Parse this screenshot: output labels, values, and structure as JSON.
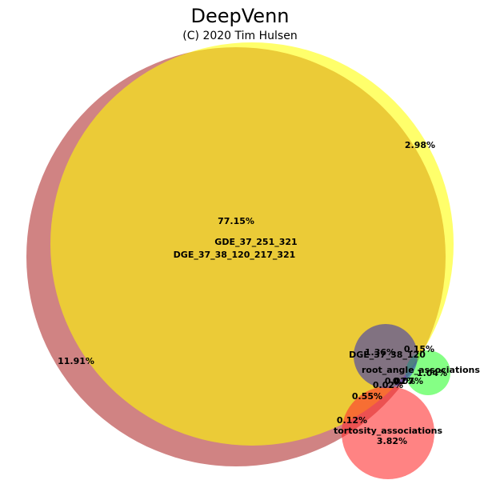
{
  "title": "DeepVenn",
  "subtitle": "(C) 2020 Tim Hulsen",
  "sets": [
    {
      "name": "DGE_37_38_120_217_321",
      "color": "#b03030"
    },
    {
      "name": "GDE_37_251_321",
      "color": "#ffff66"
    },
    {
      "name": "DGE_37_38_120",
      "color": "#5555a0"
    },
    {
      "name": "root_angle_associations",
      "color": "#66ff66"
    },
    {
      "name": "tortosity_associations",
      "color": "#ff6666"
    }
  ],
  "percentages": {
    "core": "77.15%",
    "dge_only": "11.91%",
    "gde_only": "2.98%",
    "dge120_a": "1.36%",
    "dge120_b": "0.15%",
    "root": "1.04%",
    "c1": "0.02%",
    "c2": "0.02%",
    "c3": "0.07%",
    "mid": "0.55%",
    "tort_left": "0.12%",
    "tort": "3.82%"
  }
}
